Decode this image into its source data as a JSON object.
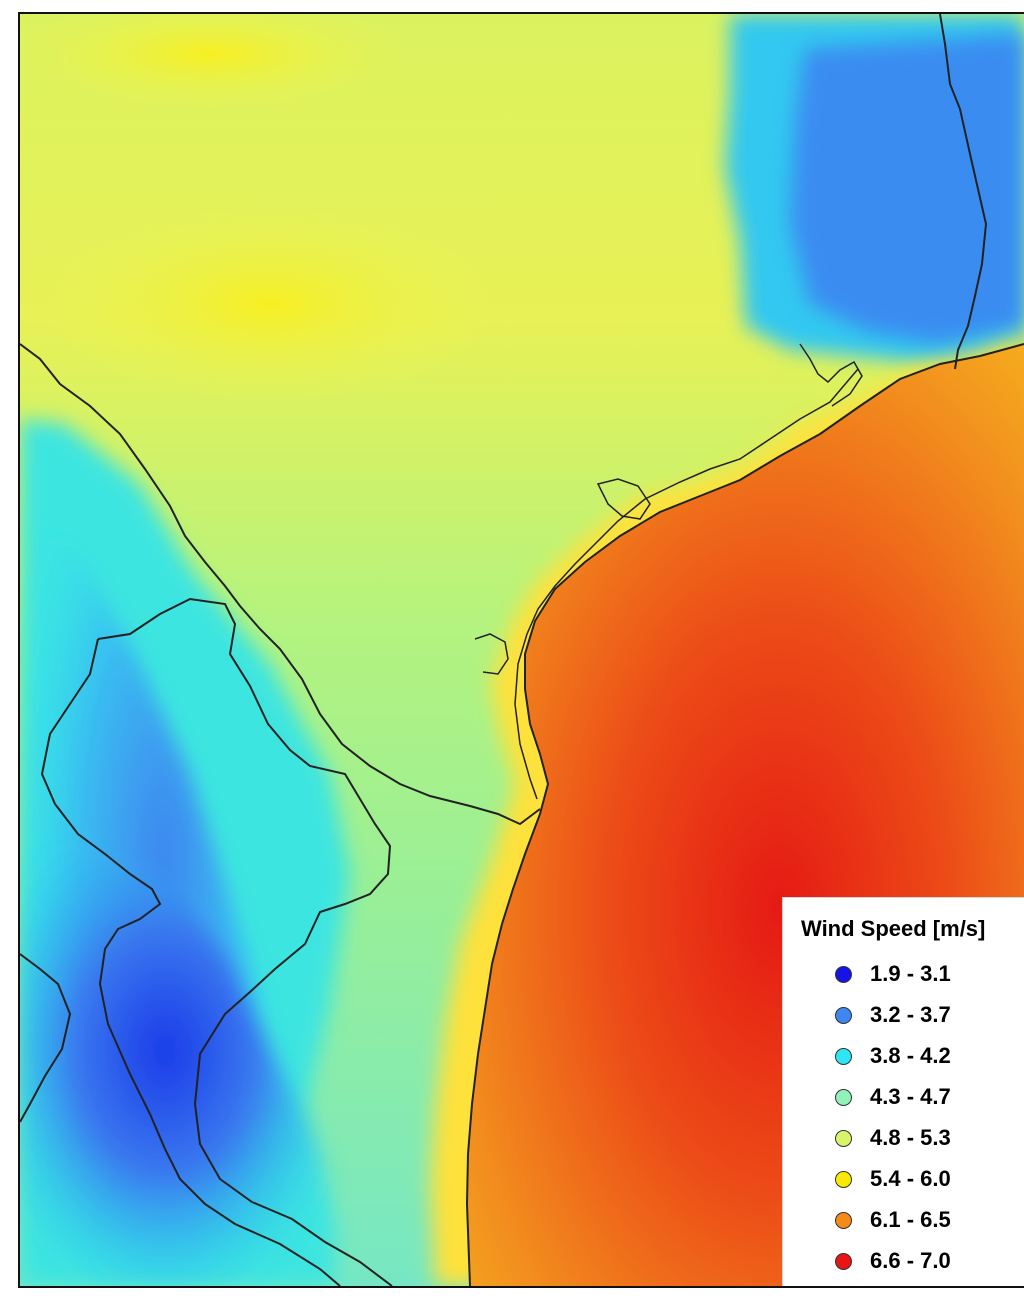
{
  "map": {
    "legend": {
      "title": "Wind Speed [m/s]",
      "items": [
        {
          "label": "1.9 - 3.1",
          "color": "#1414e6"
        },
        {
          "label": "3.2 - 3.7",
          "color": "#3f86f0"
        },
        {
          "label": "3.8 - 4.2",
          "color": "#2ee5f3"
        },
        {
          "label": "4.3 - 4.7",
          "color": "#8ff2b8"
        },
        {
          "label": "4.8 - 5.3",
          "color": "#d8f56a"
        },
        {
          "label": "5.4 - 6.0",
          "color": "#f8ea00"
        },
        {
          "label": "6.1 - 6.5",
          "color": "#f48a1a"
        },
        {
          "label": "6.6 - 7.0",
          "color": "#e91414"
        }
      ]
    },
    "colors": {
      "ocean_far": "#f6b21a",
      "ocean_mid": "#f28f1e",
      "ocean_core": "#e51a14",
      "coast_glow": "#ffe13a",
      "land_base": "#a9f18a",
      "land_yellow": "#e6f45a",
      "land_cyan": "#63e8d9",
      "land_blue": "#2f70f0",
      "border": "#222222"
    }
  }
}
